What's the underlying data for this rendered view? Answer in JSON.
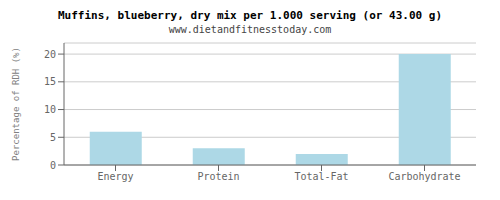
{
  "chart_data": {
    "type": "bar",
    "title": "Muffins, blueberry, dry mix per 1.000 serving (or 43.00 g)",
    "subtitle": "www.dietandfitnesstoday.com",
    "categories": [
      "Energy",
      "Protein",
      "Total-Fat",
      "Carbohydrate"
    ],
    "values": [
      6,
      3,
      2,
      20
    ],
    "color": "#add8e6",
    "ylabel": "Percentage of RDH (%)",
    "ylim": [
      0,
      22
    ],
    "yticks": [
      0,
      5,
      10,
      15,
      20
    ],
    "grid": true
  }
}
